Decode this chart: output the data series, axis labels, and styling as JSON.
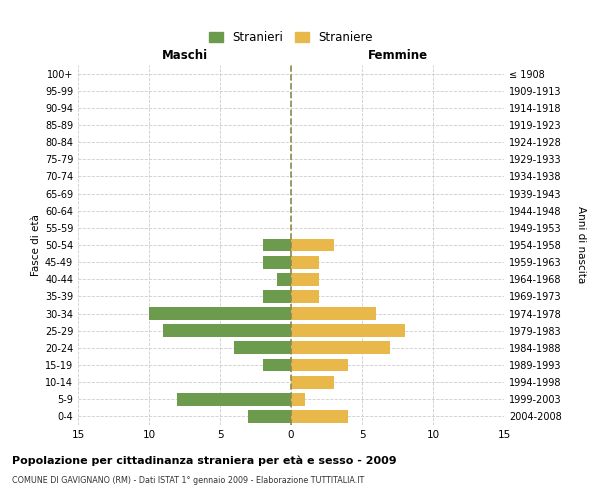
{
  "age_groups": [
    "100+",
    "95-99",
    "90-94",
    "85-89",
    "80-84",
    "75-79",
    "70-74",
    "65-69",
    "60-64",
    "55-59",
    "50-54",
    "45-49",
    "40-44",
    "35-39",
    "30-34",
    "25-29",
    "20-24",
    "15-19",
    "10-14",
    "5-9",
    "0-4"
  ],
  "birth_years": [
    "≤ 1908",
    "1909-1913",
    "1914-1918",
    "1919-1923",
    "1924-1928",
    "1929-1933",
    "1934-1938",
    "1939-1943",
    "1944-1948",
    "1949-1953",
    "1954-1958",
    "1959-1963",
    "1964-1968",
    "1969-1973",
    "1974-1978",
    "1979-1983",
    "1984-1988",
    "1989-1993",
    "1994-1998",
    "1999-2003",
    "2004-2008"
  ],
  "males": [
    0,
    0,
    0,
    0,
    0,
    0,
    0,
    0,
    0,
    0,
    2,
    2,
    1,
    2,
    10,
    9,
    4,
    2,
    0,
    8,
    3
  ],
  "females": [
    0,
    0,
    0,
    0,
    0,
    0,
    0,
    0,
    0,
    0,
    3,
    2,
    2,
    2,
    6,
    8,
    7,
    4,
    3,
    1,
    4
  ],
  "male_color": "#6d9b4e",
  "female_color": "#e8b84b",
  "center_line_color": "#8b8b4e",
  "title": "Popolazione per cittadinanza straniera per età e sesso - 2009",
  "subtitle": "COMUNE DI GAVIGNANO (RM) - Dati ISTAT 1° gennaio 2009 - Elaborazione TUTTITALIA.IT",
  "xlabel_left": "Maschi",
  "xlabel_right": "Femmine",
  "ylabel_left": "Fasce di età",
  "ylabel_right": "Anni di nascita",
  "legend_male": "Stranieri",
  "legend_female": "Straniere",
  "xlim": 15,
  "bg_color": "#ffffff",
  "grid_color": "#cccccc",
  "bar_height": 0.75
}
